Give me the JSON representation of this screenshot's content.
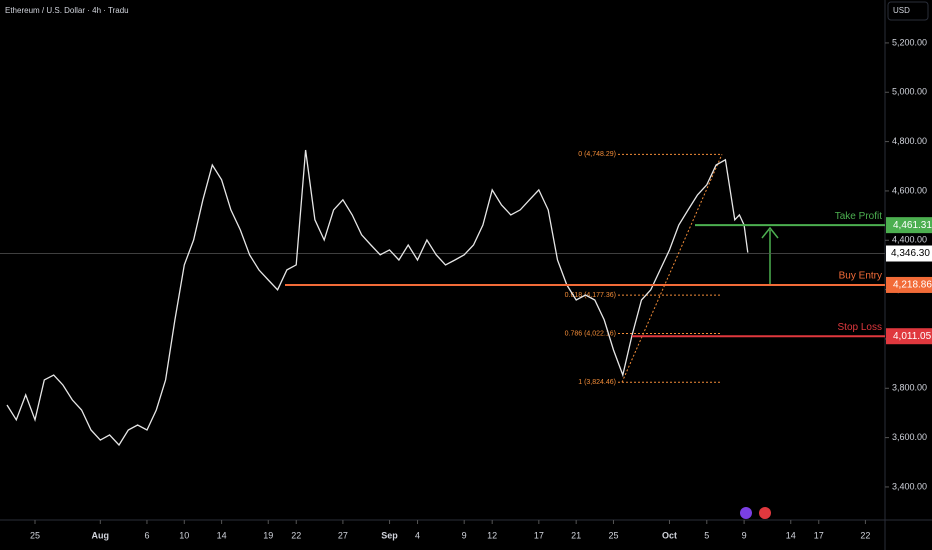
{
  "chart_data": {
    "type": "line",
    "title": "Ethereum / U.S. Dollar · 4h · Tradu",
    "currency": "USD",
    "color": "#e6e6e6",
    "x": [
      -3,
      -2,
      -1,
      0,
      1,
      2,
      3,
      4,
      5,
      6,
      7,
      8,
      9,
      10,
      11,
      12,
      13,
      14,
      15,
      16,
      17,
      18,
      19,
      20,
      21,
      22,
      23,
      24,
      25,
      26,
      27,
      28,
      29,
      30,
      31,
      32,
      33,
      34,
      35,
      36,
      37,
      38,
      39,
      40,
      41,
      42,
      43,
      44,
      45,
      46,
      47,
      48,
      49,
      50,
      51,
      52,
      53,
      54,
      55,
      56,
      57,
      58,
      59,
      60,
      61,
      62,
      63,
      64,
      65,
      66,
      67,
      68,
      69,
      70,
      71,
      72,
      73,
      74,
      75,
      75.5,
      76,
      76.4
    ],
    "values": [
      3732,
      3672,
      3773,
      3672,
      3834,
      3854,
      3813,
      3753,
      3712,
      3631,
      3590,
      3611,
      3570,
      3631,
      3651,
      3631,
      3712,
      3834,
      4077,
      4300,
      4401,
      4564,
      4705,
      4645,
      4523,
      4442,
      4341,
      4280,
      4239,
      4199,
      4280,
      4300,
      4766,
      4483,
      4401,
      4523,
      4564,
      4503,
      4422,
      4381,
      4341,
      4361,
      4320,
      4381,
      4320,
      4401,
      4341,
      4300,
      4320,
      4341,
      4381,
      4462,
      4604,
      4543,
      4503,
      4523,
      4564,
      4604,
      4523,
      4320,
      4219,
      4158,
      4178,
      4158,
      4077,
      3955,
      3854,
      4016,
      4158,
      4199,
      4280,
      4361,
      4462,
      4523,
      4584,
      4625,
      4705,
      4726,
      4483,
      4503,
      4462,
      4350
    ],
    "xlim": [
      -3.75,
      91.1
    ],
    "ylim": [
      3266,
      5374
    ],
    "xticks": [
      {
        "value": 0,
        "label": "25"
      },
      {
        "value": 7,
        "label": "Aug"
      },
      {
        "value": 12,
        "label": "6"
      },
      {
        "value": 16,
        "label": "10"
      },
      {
        "value": 20,
        "label": "14"
      },
      {
        "value": 25,
        "label": "19"
      },
      {
        "value": 28,
        "label": "22"
      },
      {
        "value": 33,
        "label": "27"
      },
      {
        "value": 38,
        "label": "Sep"
      },
      {
        "value": 41,
        "label": "4"
      },
      {
        "value": 46,
        "label": "9"
      },
      {
        "value": 49,
        "label": "12"
      },
      {
        "value": 54,
        "label": "17"
      },
      {
        "value": 58,
        "label": "21"
      },
      {
        "value": 62,
        "label": "25"
      },
      {
        "value": 68,
        "label": "Oct"
      },
      {
        "value": 72,
        "label": "5"
      },
      {
        "value": 76,
        "label": "9"
      },
      {
        "value": 81,
        "label": "14"
      },
      {
        "value": 84,
        "label": "17"
      },
      {
        "value": 89,
        "label": "22"
      }
    ],
    "yticks": [
      {
        "value": 3400,
        "label": "3,400.00"
      },
      {
        "value": 3600,
        "label": "3,600.00"
      },
      {
        "value": 3800,
        "label": "3,800.00"
      },
      {
        "value": 4000,
        "label": "4,000.00"
      },
      {
        "value": 4200,
        "label": "4,200.00"
      },
      {
        "value": 4400,
        "label": "4,400.00"
      },
      {
        "value": 4600,
        "label": "4,600.00"
      },
      {
        "value": 4800,
        "label": "4,800.00"
      },
      {
        "value": 5000,
        "label": "5,000.00"
      },
      {
        "value": 5200,
        "label": "5,200.00"
      }
    ],
    "last_price": {
      "value": 4346.3,
      "label": "4,346.30"
    },
    "levels": [
      {
        "name": "Take Profit",
        "value": 4461.31,
        "label": "4,461.31",
        "color": "#4caf50"
      },
      {
        "name": "Buy Entry",
        "value": 4218.86,
        "label": "4,218.86",
        "color": "#f26b38"
      },
      {
        "name": "Stop Loss",
        "value": 4011.05,
        "label": "4,011.05",
        "color": "#e0383e"
      }
    ],
    "fib": [
      {
        "value": 4748.29,
        "label": "0 (4,748.29)"
      },
      {
        "value": 4177.36,
        "label": "0.618 (4,177.36)"
      },
      {
        "value": 4022.16,
        "label": "0.786 (4,022.16)"
      },
      {
        "value": 3824.46,
        "label": "1 (3,824.46)"
      }
    ]
  }
}
